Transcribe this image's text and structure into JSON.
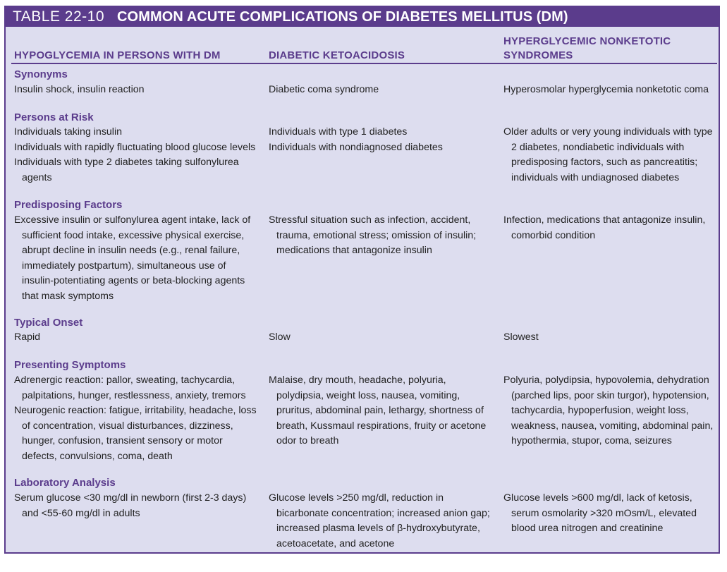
{
  "title": {
    "label": "TABLE 22-10",
    "text": "COMMON ACUTE COMPLICATIONS OF DIABETES MELLITUS (DM)"
  },
  "columns": [
    "HYPOGLYCEMIA IN PERSONS WITH DM",
    "DIABETIC KETOACIDOSIS",
    "HYPERGLYCEMIC NONKETOTIC SYNDROMES"
  ],
  "sections": [
    {
      "title": "Synonyms",
      "cols": [
        [
          "Insulin shock, insulin reaction"
        ],
        [
          "Diabetic coma syndrome"
        ],
        [
          "Hyperosmolar hyperglycemia nonketotic coma"
        ]
      ]
    },
    {
      "title": "Persons at Risk",
      "cols": [
        [
          "Individuals taking insulin",
          "Individuals with rapidly fluctuating blood glucose levels",
          "Individuals with type 2 diabetes taking sulfonylurea agents"
        ],
        [
          "Individuals with type 1 diabetes",
          "Individuals with nondiagnosed diabetes"
        ],
        [
          "Older adults or very young individuals with type 2 diabetes, nondiabetic individuals with predisposing factors, such as pancreatitis; individuals with undiagnosed diabetes"
        ]
      ]
    },
    {
      "title": "Predisposing Factors",
      "cols": [
        [
          "Excessive insulin or sulfonylurea agent intake, lack of sufficient food intake, excessive physical exercise, abrupt decline in insulin needs (e.g., renal failure, immediately postpartum), simultaneous use of insulin-potentiating agents or beta-blocking agents that mask symptoms"
        ],
        [
          "Stressful situation such as infection, accident, trauma, emotional stress; omission of insulin; medications that antagonize insulin"
        ],
        [
          "Infection, medications that antagonize insulin, comorbid condition"
        ]
      ]
    },
    {
      "title": "Typical Onset",
      "cols": [
        [
          "Rapid"
        ],
        [
          "Slow"
        ],
        [
          "Slowest"
        ]
      ]
    },
    {
      "title": "Presenting Symptoms",
      "cols": [
        [
          "Adrenergic reaction: pallor, sweating, tachycardia, palpitations, hunger, restlessness, anxiety, tremors",
          "Neurogenic reaction: fatigue, irritability, headache, loss of concentration, visual disturbances, dizziness, hunger, confusion, transient sensory or motor defects, convulsions, coma, death"
        ],
        [
          "Malaise, dry mouth, headache, polyuria, polydipsia, weight loss, nausea, vomiting, pruritus, abdominal pain, lethargy, shortness of breath, Kussmaul respirations, fruity or acetone odor to breath"
        ],
        [
          "Polyuria, polydipsia, hypovolemia, dehydration (parched lips, poor skin turgor), hypotension, tachycardia, hypoperfusion, weight loss, weakness, nausea, vomiting, abdominal pain, hypothermia, stupor, coma, seizures"
        ]
      ]
    },
    {
      "title": "Laboratory Analysis",
      "cols": [
        [
          "Serum glucose <30 mg/dl in newborn (first 2-3 days) and <55-60 mg/dl in adults"
        ],
        [
          "Glucose levels >250 mg/dl, reduction in bicarbonate concentration; increased anion gap; increased plasma levels of β-hydroxybutyrate, acetoacetate, and acetone"
        ],
        [
          "Glucose levels >600 mg/dl, lack of ketosis, serum osmolarity >320 mOsm/L, elevated blood urea nitrogen and creatinine"
        ]
      ]
    }
  ]
}
